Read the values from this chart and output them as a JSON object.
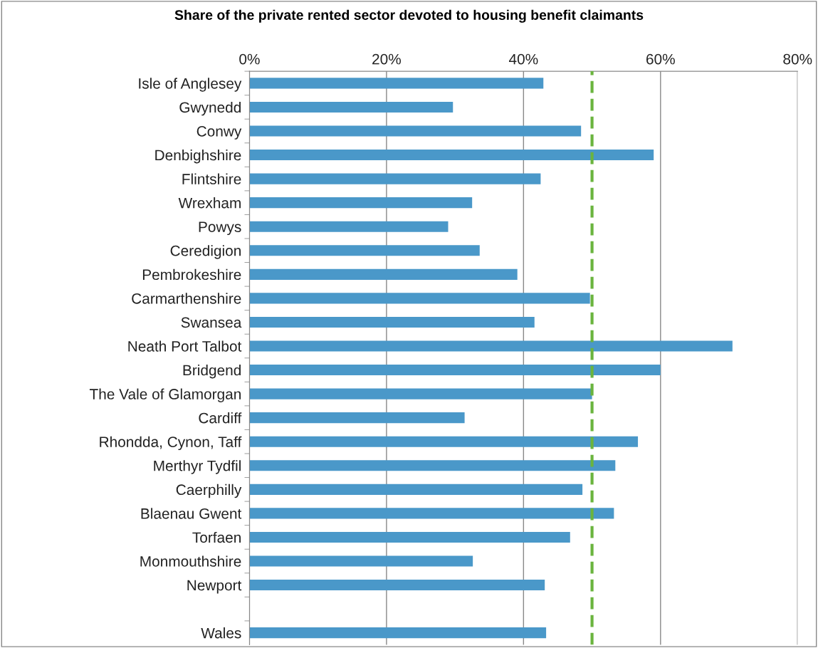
{
  "chart_data": {
    "type": "bar",
    "orientation": "horizontal",
    "title": "Share of the private rented sector devoted to housing benefit claimants",
    "categories": [
      "Isle of Anglesey",
      "Gwynedd",
      "Conwy",
      "Denbighshire",
      "Flintshire",
      "Wrexham",
      "Powys",
      "Ceredigion",
      "Pembrokeshire",
      "Carmarthenshire",
      "Swansea",
      "Neath Port Talbot",
      "Bridgend",
      "The Vale of Glamorgan",
      "Cardiff",
      "Rhondda, Cynon, Taff",
      "Merthyr Tydfil",
      "Caerphilly",
      "Blaenau Gwent",
      "Torfaen",
      "Monmouthshire",
      "Newport",
      null,
      "Wales"
    ],
    "values": [
      42.9,
      29.7,
      48.4,
      59.0,
      42.5,
      32.5,
      29.0,
      33.6,
      39.1,
      49.7,
      41.6,
      70.5,
      60.0,
      50.0,
      31.4,
      56.7,
      53.4,
      48.6,
      53.2,
      46.8,
      32.6,
      43.1,
      null,
      43.3
    ],
    "color": "#4a98c9",
    "xlim": [
      0,
      80
    ],
    "xticks": [
      {
        "value": 0,
        "label": "0%"
      },
      {
        "value": 20,
        "label": "20%"
      },
      {
        "value": 40,
        "label": "40%"
      },
      {
        "value": 60,
        "label": "60%"
      },
      {
        "value": 80,
        "label": "80%"
      }
    ],
    "grid": "x",
    "ref_lines": [
      {
        "axis": "x",
        "value": 50,
        "label": null,
        "color": "#6ab43e",
        "line_style": "dashed"
      }
    ]
  }
}
